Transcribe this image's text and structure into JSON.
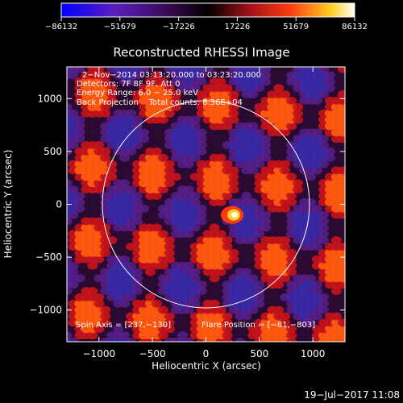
{
  "chart_data": {
    "type": "heatmap",
    "title": "Reconstructed RHESSI Image",
    "xlabel": "Heliocentric X (arcsec)",
    "ylabel": "Heliocentric Y (arcsec)",
    "xlim": [
      -1300,
      1300
    ],
    "ylim": [
      -1300,
      1300
    ],
    "xticks": [
      -1000,
      -500,
      0,
      500,
      1000
    ],
    "yticks": [
      -1000,
      -500,
      0,
      500,
      1000
    ],
    "xtick_labels": [
      "−1000",
      "−500",
      "0",
      "500",
      "1000"
    ],
    "ytick_labels": [
      "−1000",
      "−500",
      "0",
      "500",
      "1000"
    ],
    "colorbar": {
      "range": [
        -86132,
        86132
      ],
      "ticks": [
        -86132,
        -51679,
        -17226,
        17226,
        51679,
        86132
      ],
      "tick_labels": [
        "−86132",
        "−51679",
        "−17226",
        "17226",
        "51679",
        "86132"
      ],
      "colors": [
        "#0000ff",
        "#7a1ab0",
        "#1a0020",
        "#000000",
        "#c0141e",
        "#ff6a10",
        "#ffff30",
        "#ffffff"
      ]
    },
    "annotations": [
      "2−Nov−2014 03:13:20.000 to 03:23:20.000",
      "Detectors: 7F 8F 9F, Att 0",
      "Energy Range: 6.0 − 25.0 keV",
      "Back Projection    Total counts: 8.36E+04"
    ],
    "spin_axis": "Spin Axis = [237,−130]",
    "flare_position": "Flare Position = [−81,−803]",
    "solar_limb_radius": 968,
    "peak": [
      260,
      -100
    ],
    "grid": false
  },
  "footer": {
    "timestamp": "19−Jul−2017 11:08"
  }
}
